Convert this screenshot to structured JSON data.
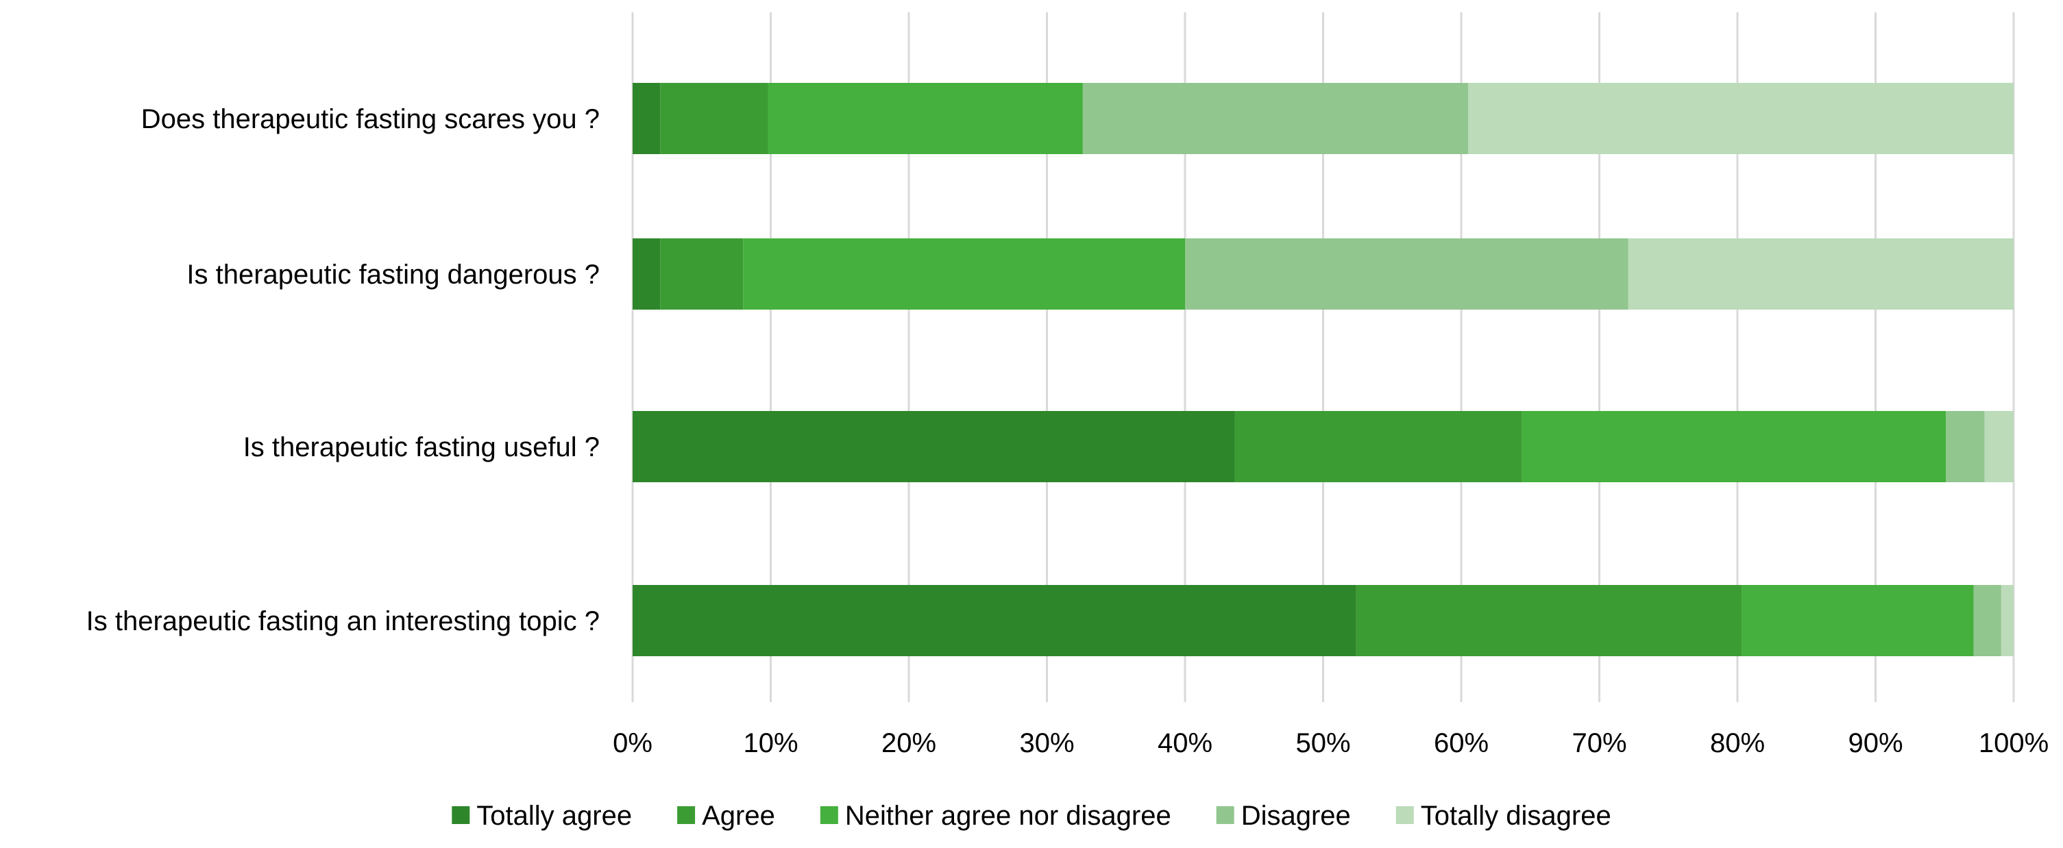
{
  "chart_data": {
    "type": "bar",
    "orientation": "horizontal",
    "stacked": "percent",
    "categories": [
      "Does therapeutic fasting scares you ?",
      "Is therapeutic fasting dangerous ?",
      "Is therapeutic fasting useful ?",
      "Is therapeutic fasting an interesting topic ?"
    ],
    "series": [
      {
        "name": "Totally agree",
        "color": "#2e862b",
        "values": [
          2,
          2,
          43.6,
          52.4
        ]
      },
      {
        "name": "Agree",
        "color": "#3c9c34",
        "values": [
          7.8,
          6,
          20.8,
          27.9
        ]
      },
      {
        "name": "Neither agree nor disagree",
        "color": "#45b03d",
        "values": [
          22.8,
          32,
          30.7,
          16.8
        ]
      },
      {
        "name": "Disagree",
        "color": "#92c68f",
        "values": [
          27.9,
          32.1,
          2.8,
          2
        ]
      },
      {
        "name": "Totally disagree",
        "color": "#bbdbb9",
        "values": [
          39.5,
          27.9,
          2.1,
          0.9
        ]
      }
    ],
    "xlim": [
      0,
      100
    ],
    "x_ticks": [
      "0%",
      "10%",
      "20%",
      "30%",
      "40%",
      "50%",
      "60%",
      "70%",
      "80%",
      "90%",
      "100%"
    ],
    "grid": true,
    "grid_color": "#d9d9d9",
    "legend_position": "bottom",
    "title": "",
    "xlabel": "",
    "ylabel": ""
  }
}
